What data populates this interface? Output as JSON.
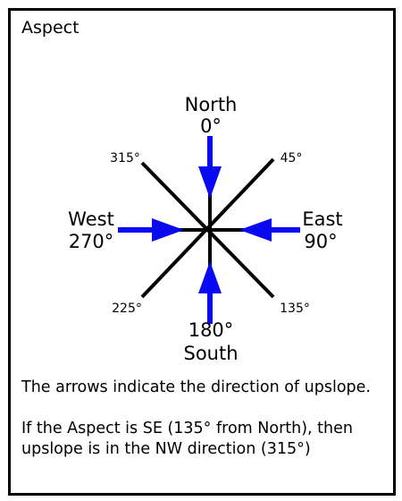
{
  "title": "Aspect",
  "compass": {
    "north": {
      "name": "North",
      "degrees": "0°"
    },
    "east": {
      "name": "East",
      "degrees": "90°"
    },
    "south": {
      "name": "South",
      "degrees": "180°"
    },
    "west": {
      "name": "West",
      "degrees": "270°"
    },
    "northeast_degrees": "45°",
    "southeast_degrees": "135°",
    "southwest_degrees": "225°",
    "northwest_degrees": "315°"
  },
  "colors": {
    "arrow": "#0a0af2",
    "line": "#000000"
  },
  "caption": {
    "line1": "The arrows indicate the direction of upslope.",
    "line2": "If the Aspect is SE (135° from North), then upslope is in the NW direction (315°)"
  }
}
